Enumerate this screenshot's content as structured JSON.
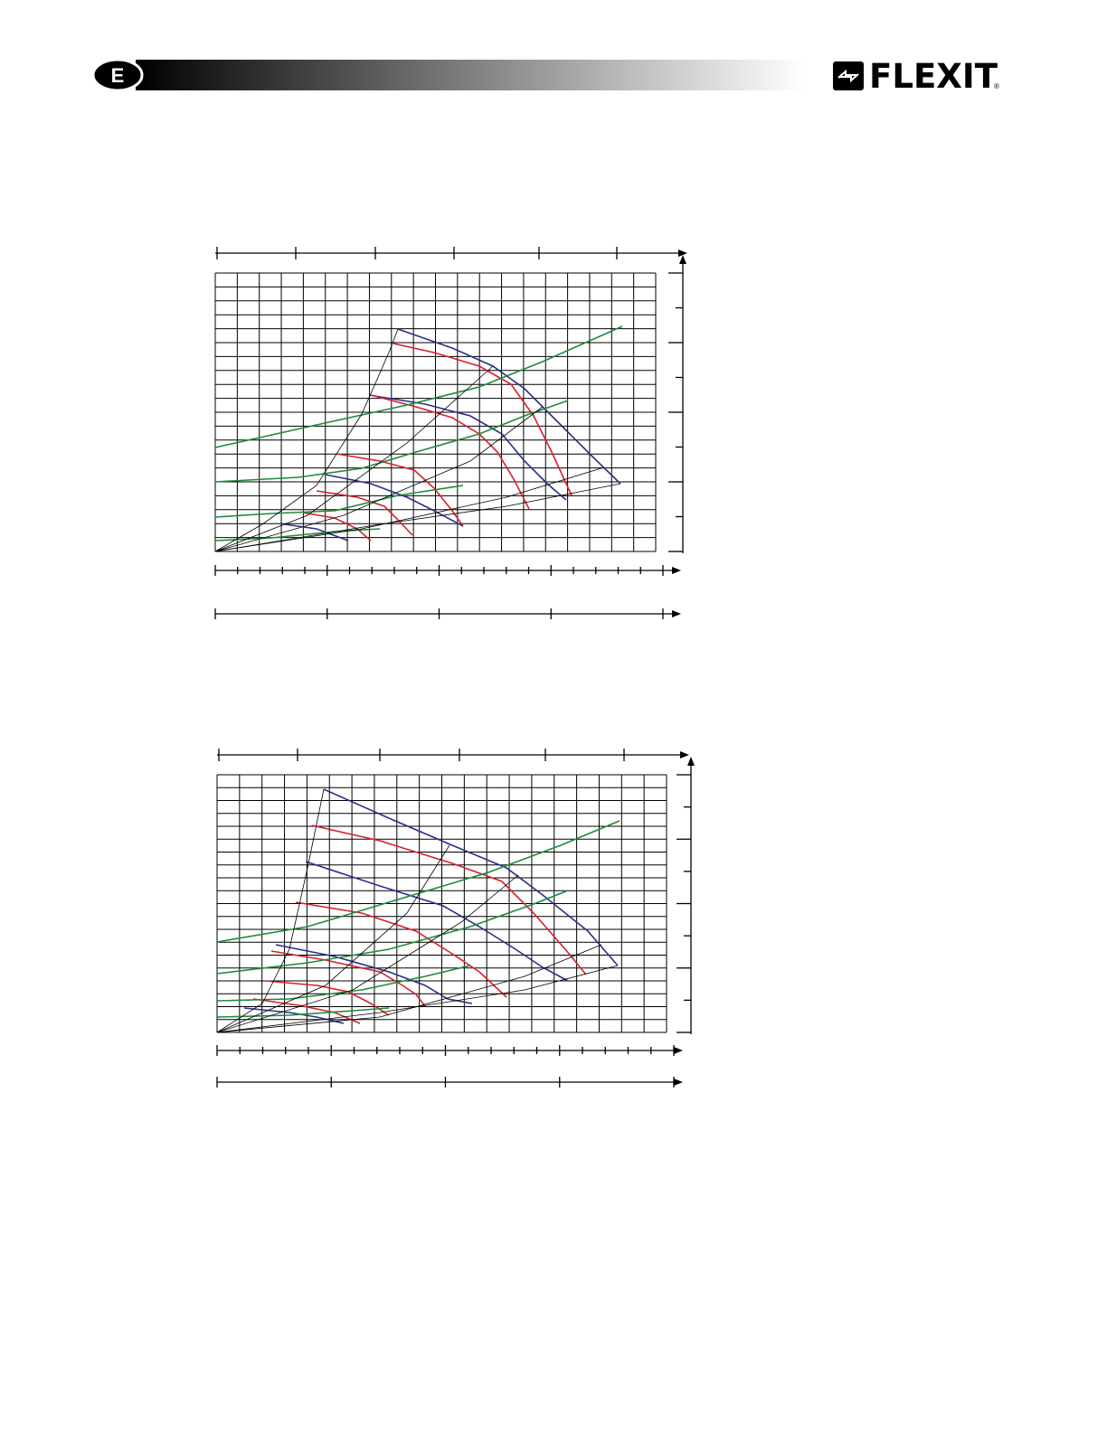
{
  "header": {
    "section": "E",
    "brand": "FLEXIT",
    "mark": "®"
  }
}
